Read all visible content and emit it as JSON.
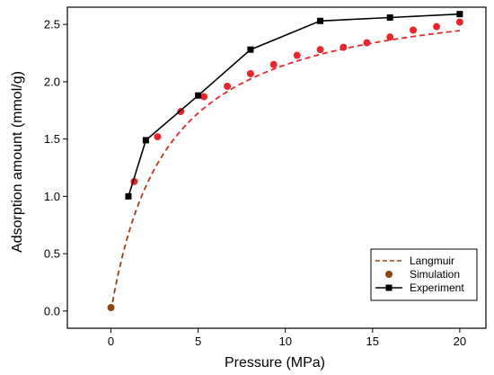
{
  "chart_data": {
    "type": "line",
    "title": "",
    "xlabel": "Pressure (MPa)",
    "ylabel": "Adsorption amount (mmol/g)",
    "xlim": [
      -2.5,
      21.5
    ],
    "ylim": [
      -0.15,
      2.65
    ],
    "x_ticks": [
      0,
      5,
      10,
      15,
      20
    ],
    "y_ticks": [
      0.0,
      0.5,
      1.0,
      1.5,
      2.0,
      2.5
    ],
    "x_tick_labels": [
      "0",
      "5",
      "10",
      "15",
      "20"
    ],
    "y_tick_labels": [
      "0.0",
      "0.5",
      "1.0",
      "1.5",
      "2.0",
      "2.5"
    ],
    "grid": false,
    "legend_position": "bottom-right",
    "series": [
      {
        "name": "Langmuir",
        "style": "dashed-line",
        "legend_color": "#8B4513",
        "colors": {
          "start": "#8B4513",
          "end": "#e8262b"
        },
        "model": {
          "qmax": 2.84,
          "b": 0.31
        }
      },
      {
        "name": "Simulation",
        "style": "markers-circle",
        "color": "#e8262b",
        "legend_color": "#8B4513",
        "origin_point_color": "#8B4513",
        "x": [
          0,
          1.33,
          2.67,
          4.0,
          5.33,
          6.67,
          8.0,
          9.33,
          10.67,
          12.0,
          13.33,
          14.67,
          16.0,
          17.33,
          18.67,
          20.0
        ],
        "y": [
          0.03,
          1.13,
          1.52,
          1.74,
          1.87,
          1.96,
          2.07,
          2.15,
          2.23,
          2.28,
          2.3,
          2.34,
          2.39,
          2.45,
          2.48,
          2.52
        ]
      },
      {
        "name": "Experiment",
        "style": "line-square",
        "color": "#000000",
        "x": [
          1.0,
          2.0,
          5.0,
          8.0,
          12.0,
          16.0,
          20.0
        ],
        "y": [
          1.0,
          1.49,
          1.88,
          2.28,
          2.53,
          2.56,
          2.59
        ]
      }
    ]
  }
}
